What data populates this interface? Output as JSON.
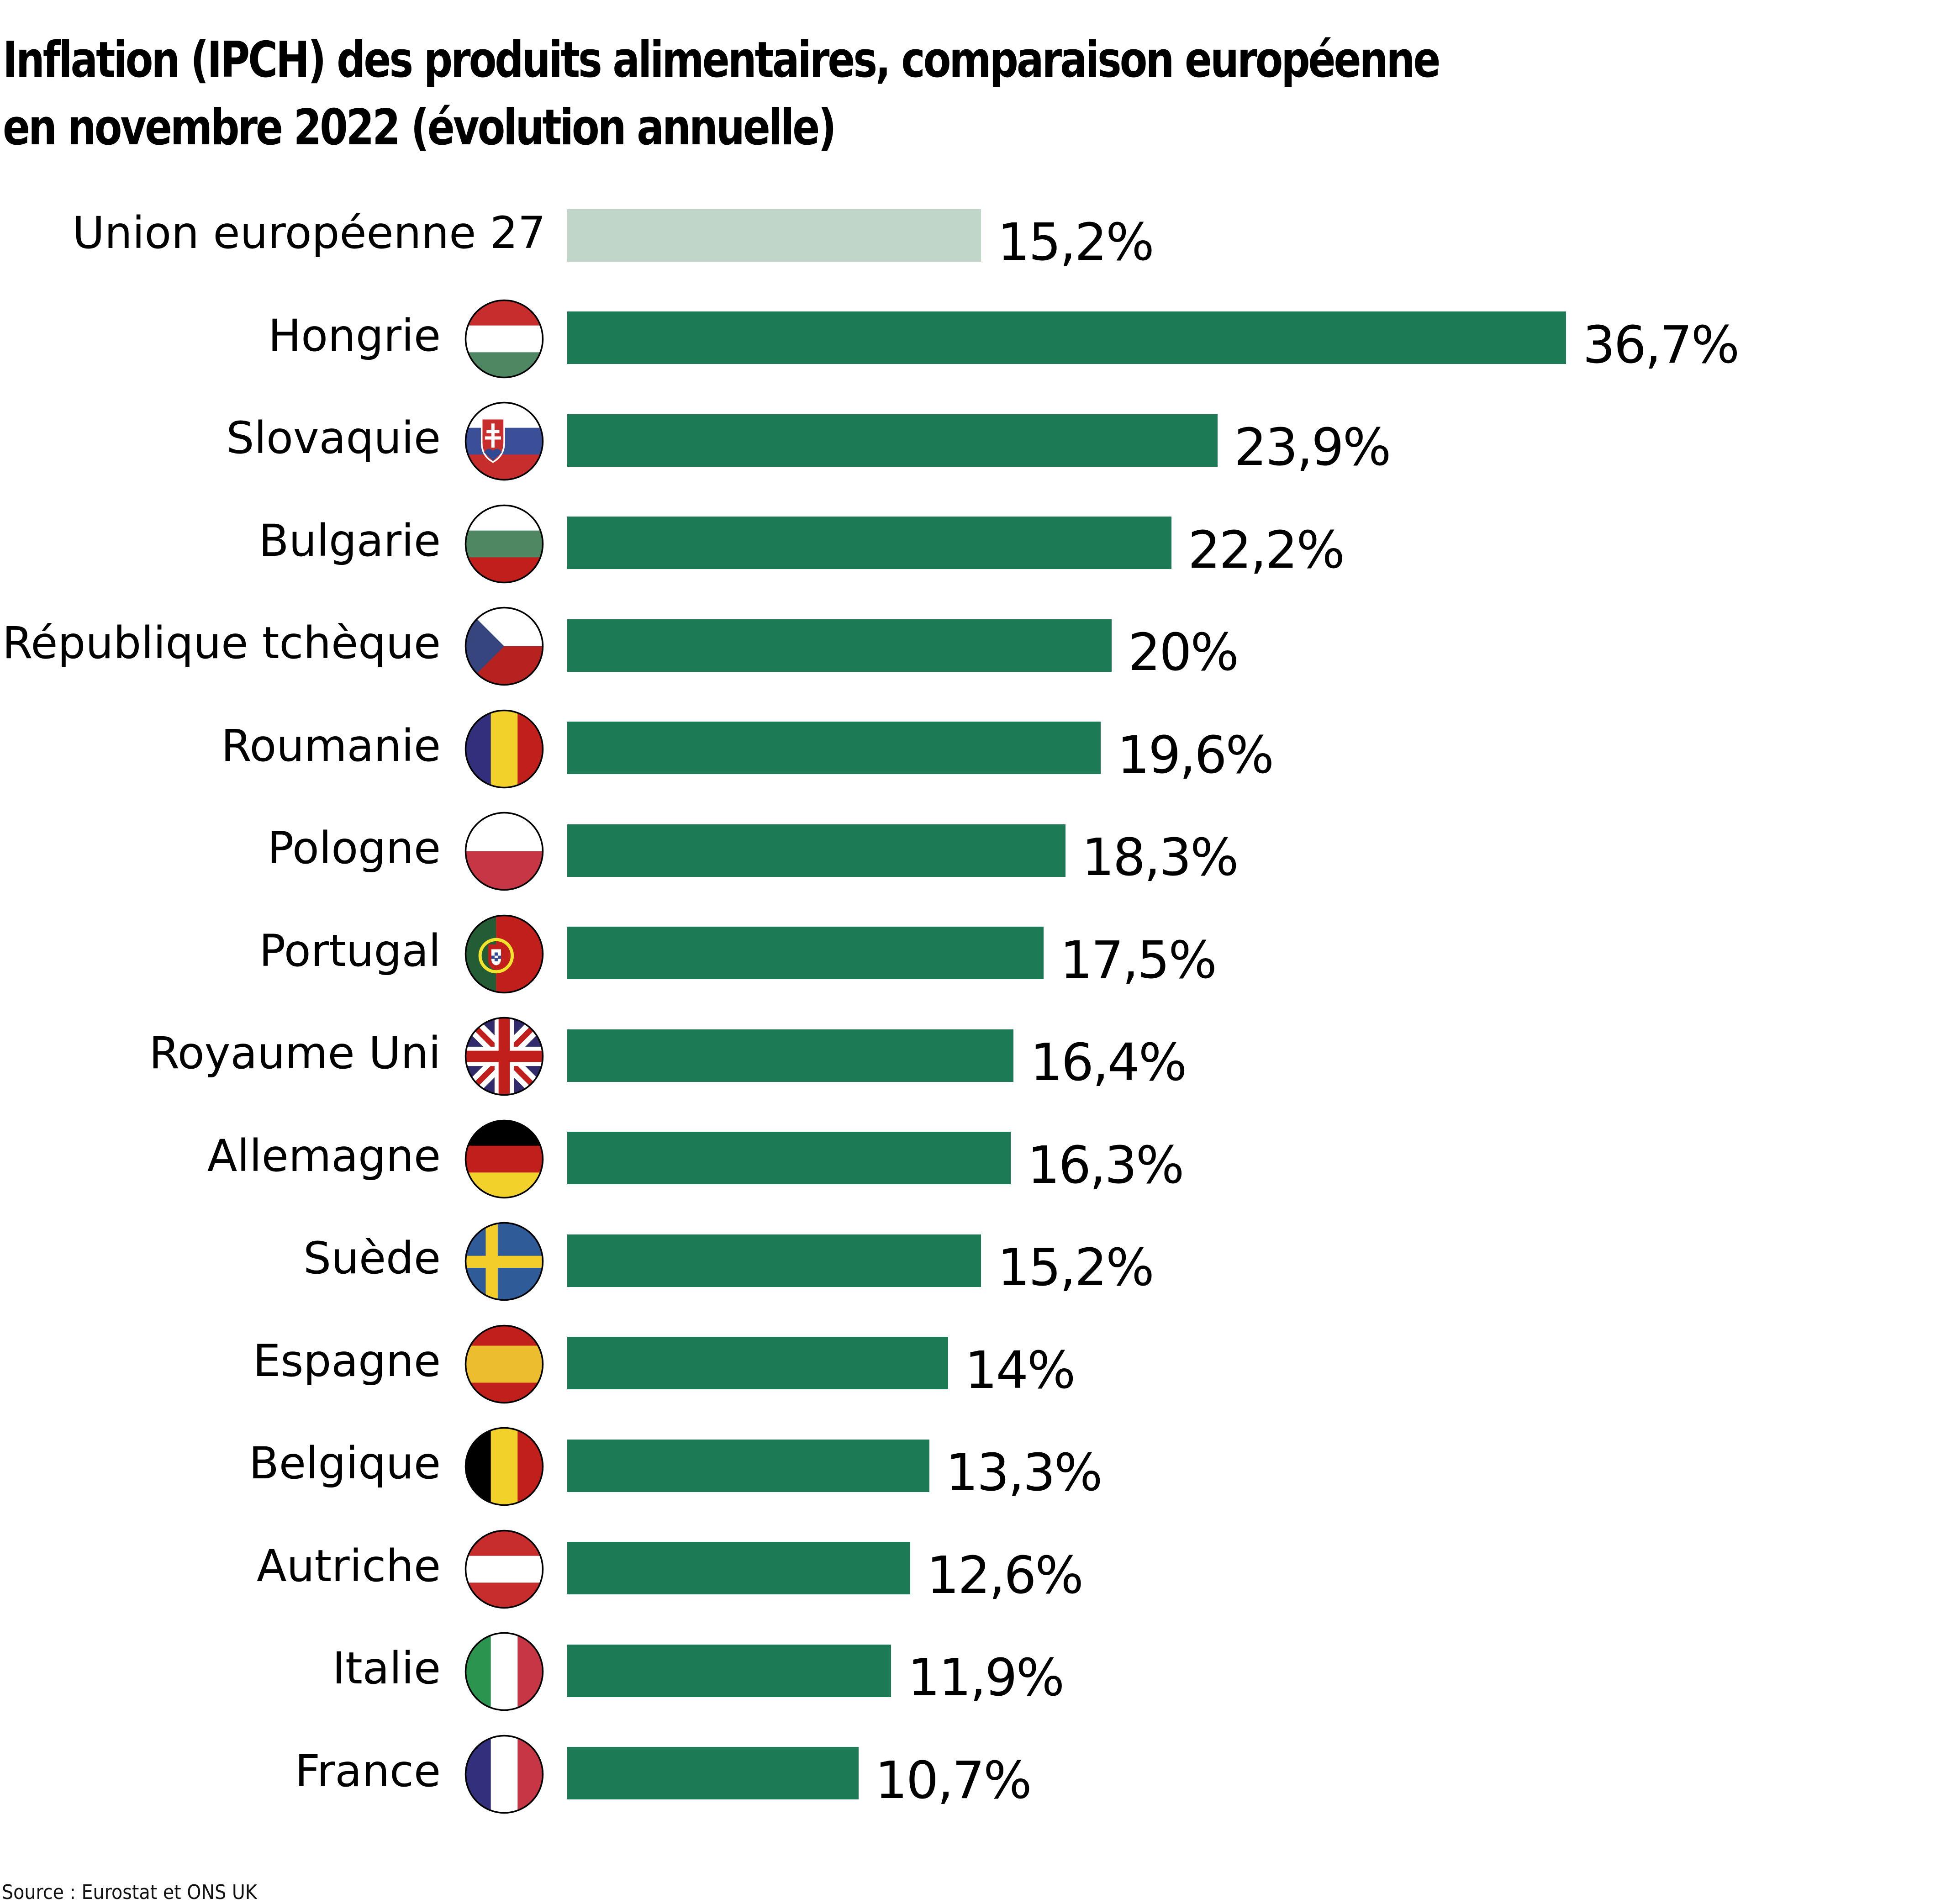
{
  "title": {
    "line1": "Inflation (IPCH) des produits alimentaires, comparaison européenne",
    "line2": "en novembre 2022 (évolution annuelle)"
  },
  "source": "Source : Eurostat et ONS UK",
  "colors": {
    "bar": "#1c7b55",
    "bar_reference": "#bfd6c8",
    "text": "#000000"
  },
  "chart_data": {
    "type": "bar",
    "orientation": "horizontal",
    "title": "Inflation (IPCH) des produits alimentaires, comparaison européenne en novembre 2022 (évolution annuelle)",
    "xlabel": "",
    "ylabel": "",
    "unit": "%",
    "xlim": [
      0,
      36.7
    ],
    "grid": false,
    "legend": "none",
    "categories": [
      "Union européenne 27",
      "Hongrie",
      "Slovaquie",
      "Bulgarie",
      "République tchèque",
      "Roumanie",
      "Pologne",
      "Portugal",
      "Royaume Uni",
      "Allemagne",
      "Suède",
      "Espagne",
      "Belgique",
      "Autriche",
      "Italie",
      "France"
    ],
    "values": [
      15.2,
      36.7,
      23.9,
      22.2,
      20,
      19.6,
      18.3,
      17.5,
      16.4,
      16.3,
      15.2,
      14,
      13.3,
      12.6,
      11.9,
      10.7
    ],
    "value_labels": [
      "15,2%",
      "36,7%",
      "23,9%",
      "22,2%",
      "20%",
      "19,6%",
      "18,3%",
      "17,5%",
      "16,4%",
      "16,3%",
      "15,2%",
      "14%",
      "13,3%",
      "12,6%",
      "11,9%",
      "10,7%"
    ],
    "flags": [
      "none",
      "flag-hungary",
      "flag-slovakia",
      "flag-bulgaria",
      "flag-czech-republic",
      "flag-romania",
      "flag-poland",
      "flag-portugal",
      "flag-united-kingdom",
      "flag-germany",
      "flag-sweden",
      "flag-spain",
      "flag-belgium",
      "flag-austria",
      "flag-italy",
      "flag-france"
    ],
    "highlight": [
      "reference",
      "normal",
      "normal",
      "normal",
      "normal",
      "normal",
      "normal",
      "normal",
      "normal",
      "normal",
      "normal",
      "normal",
      "normal",
      "normal",
      "normal",
      "normal"
    ],
    "source": "Source : Eurostat et ONS UK"
  }
}
